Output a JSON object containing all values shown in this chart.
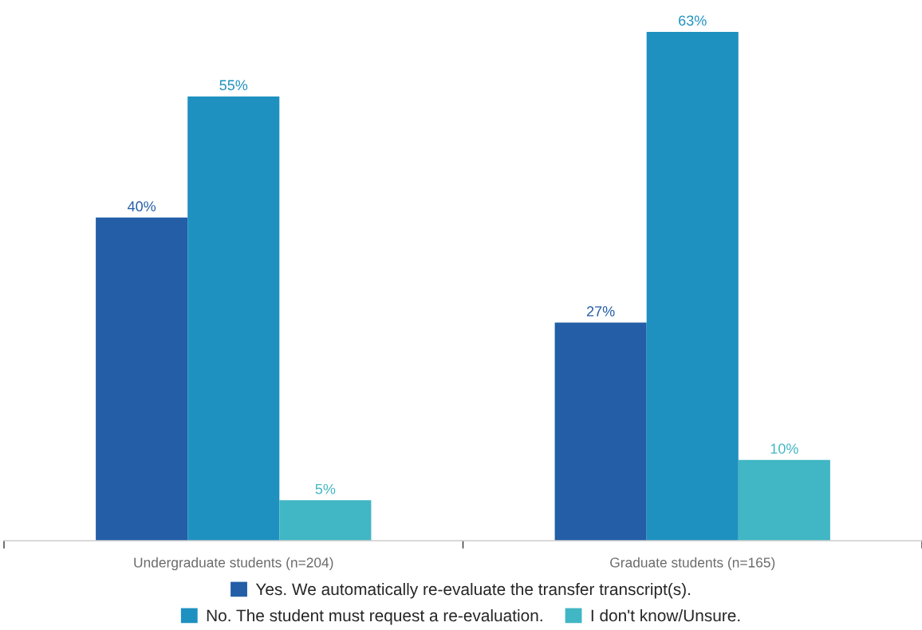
{
  "chart_data": {
    "type": "bar",
    "categories": [
      "Undergraduate students (n=204)",
      "Graduate students (n=165)"
    ],
    "series": [
      {
        "name": "Yes. We automatically re-evaluate the transfer transcript(s).",
        "color": "#235ea6",
        "values": [
          40,
          27
        ],
        "value_labels": [
          "40%",
          "27%"
        ]
      },
      {
        "name": "No. The student must request a re-evaluation.",
        "color": "#1e91c0",
        "values": [
          55,
          63
        ],
        "value_labels": [
          "55%",
          "63%"
        ]
      },
      {
        "name": "I don't know/Unsure.",
        "color": "#41b6c4",
        "values": [
          5,
          10
        ],
        "value_labels": [
          "5%",
          "10%"
        ]
      }
    ],
    "tick_labels": "x",
    "legend": "bottom"
  }
}
